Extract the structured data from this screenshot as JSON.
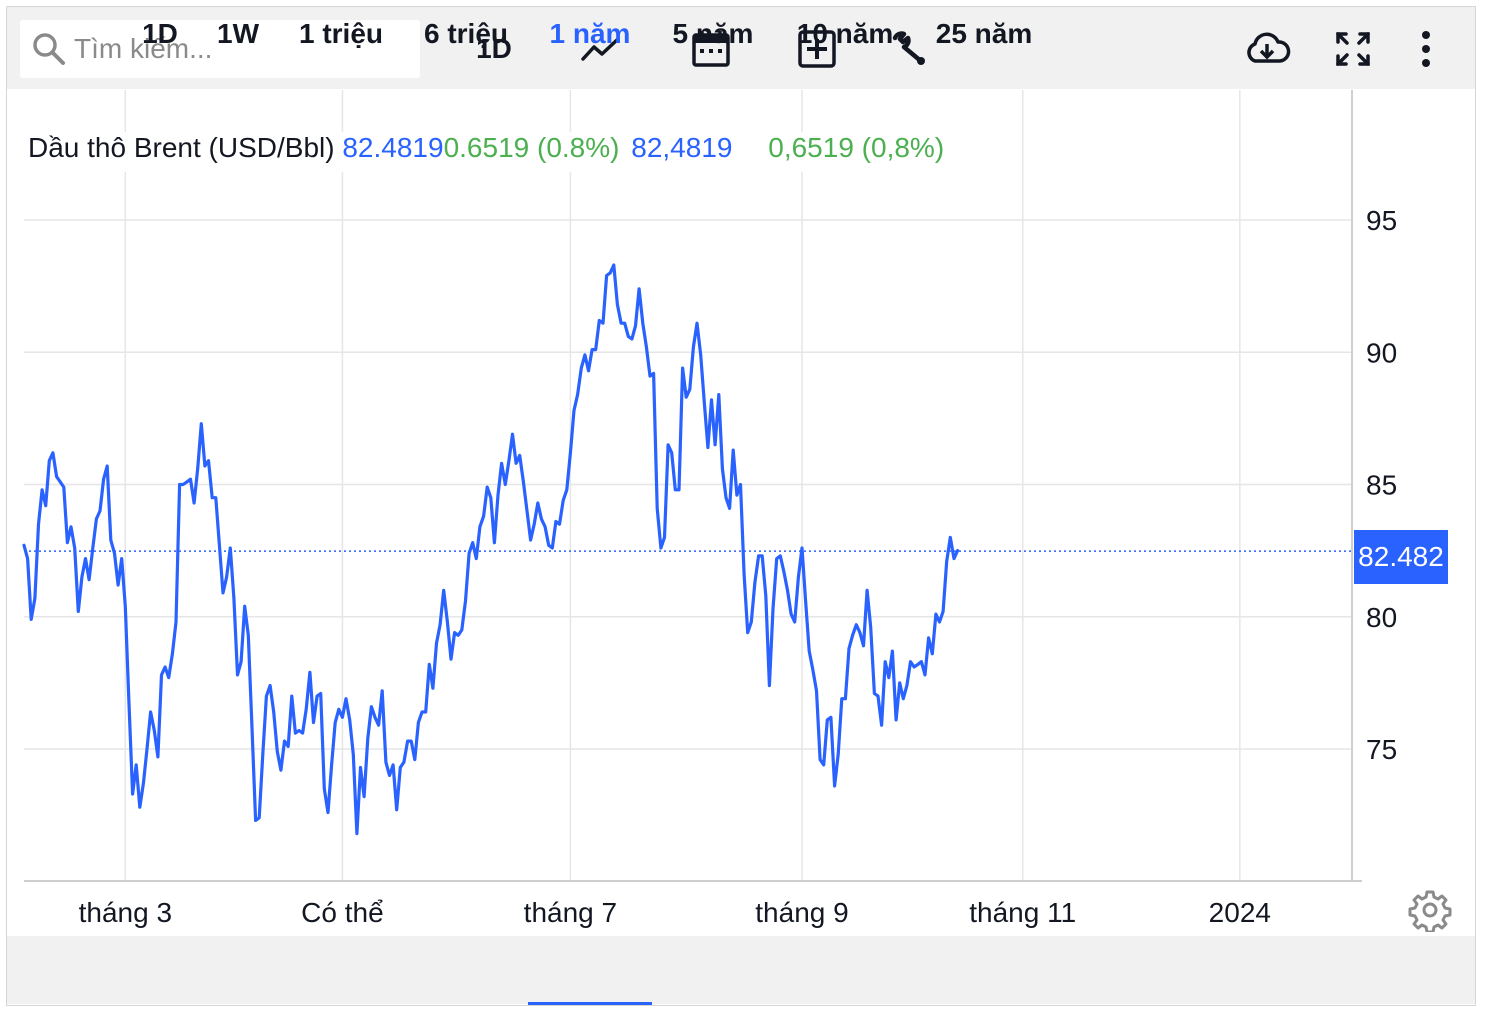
{
  "toolbar": {
    "search_placeholder": "Tìm kiếm...",
    "interval_label": "1D",
    "icons": [
      "search-icon",
      "line-chart-icon",
      "calendar-icon",
      "add-compare-icon",
      "wrench-icon",
      "cloud-download-icon",
      "fullscreen-icon",
      "more-vertical-icon"
    ]
  },
  "legend": {
    "name": "Dầu thô Brent (USD/Bbl)",
    "value": "82.4819",
    "change": "0.6519 (0.8%)",
    "value_alt": "82,4819",
    "change_alt": "0,6519 (0,8%)"
  },
  "price_badge": "82.482",
  "ranges": [
    "1D",
    "1W",
    "1 triệu",
    "6 triệu",
    "1 năm",
    "5 năm",
    "10 năm",
    "25 năm"
  ],
  "active_range": "1 năm",
  "colors": {
    "line": "#2962ff",
    "positive": "#4caf50",
    "grid": "#e6e6e6",
    "badge": "#2962ff"
  },
  "chart_data": {
    "type": "line",
    "title": "Dầu thô Brent (USD/Bbl)",
    "xlabel": "",
    "ylabel": "",
    "ylim": [
      70,
      97
    ],
    "xlim": [
      0,
      367
    ],
    "yticks": [
      75,
      80,
      85,
      90,
      95
    ],
    "xticks": [
      {
        "label": "tháng 3",
        "x": 28
      },
      {
        "label": "Có thể",
        "x": 88
      },
      {
        "label": "tháng 7",
        "x": 151
      },
      {
        "label": "tháng 9",
        "x": 215
      },
      {
        "label": "tháng 11",
        "x": 276
      },
      {
        "label": "2024",
        "x": 336
      }
    ],
    "last_value": 82.482,
    "grid": true,
    "series": [
      {
        "values": [
          82.7,
          82.2,
          79.9,
          80.7,
          83.5,
          84.8,
          84.2,
          85.9,
          86.2,
          85.3,
          85.1,
          84.9,
          82.8,
          83.4,
          82.6,
          80.2,
          81.5,
          82.2,
          81.4,
          82.6,
          83.7,
          84.0,
          85.2,
          85.7,
          82.9,
          82.4,
          81.2,
          82.2,
          80.4,
          76.8,
          73.3,
          74.4,
          72.8,
          73.7,
          75.0,
          76.4,
          75.7,
          74.7,
          77.8,
          78.1,
          77.7,
          78.6,
          79.8,
          85.0,
          85.0,
          85.1,
          85.2,
          84.3,
          85.6,
          87.3,
          85.7,
          85.9,
          84.5,
          84.5,
          82.7,
          80.9,
          81.5,
          82.6,
          80.7,
          77.8,
          78.3,
          80.4,
          79.3,
          75.8,
          72.3,
          72.4,
          74.8,
          77.0,
          77.4,
          76.4,
          74.9,
          74.2,
          75.3,
          75.1,
          77.0,
          75.6,
          75.7,
          75.6,
          76.5,
          77.9,
          76.0,
          77.0,
          77.1,
          73.5,
          72.6,
          74.4,
          76.0,
          76.5,
          76.2,
          76.9,
          76.1,
          74.8,
          71.8,
          74.3,
          73.2,
          75.4,
          76.6,
          76.2,
          75.9,
          77.2,
          74.5,
          74.0,
          74.4,
          72.7,
          74.3,
          74.5,
          75.3,
          75.3,
          74.6,
          76.0,
          76.4,
          76.4,
          78.2,
          77.3,
          79.0,
          79.7,
          81.0,
          79.8,
          78.4,
          79.4,
          79.3,
          79.5,
          80.6,
          82.4,
          82.8,
          82.2,
          83.4,
          83.8,
          84.9,
          84.5,
          82.8,
          84.6,
          85.8,
          85.0,
          85.9,
          86.9,
          85.8,
          86.1,
          85.1,
          84.0,
          82.9,
          83.5,
          84.3,
          83.7,
          83.4,
          82.7,
          82.6,
          83.6,
          83.5,
          84.4,
          84.8,
          86.2,
          87.8,
          88.4,
          89.4,
          89.9,
          89.3,
          90.1,
          90.1,
          91.2,
          91.1,
          92.9,
          93.0,
          93.3,
          91.8,
          91.1,
          91.1,
          90.6,
          90.5,
          91.0,
          92.4,
          91.1,
          90.2,
          89.1,
          89.2,
          84.1,
          82.6,
          83.0,
          86.5,
          86.2,
          84.8,
          84.8,
          89.4,
          88.3,
          88.6,
          90.2,
          91.1,
          89.9,
          88.1,
          86.4,
          88.2,
          86.5,
          88.4,
          85.6,
          84.5,
          84.1,
          86.3,
          84.6,
          85.0,
          81.6,
          79.4,
          79.8,
          81.3,
          82.3,
          82.3,
          80.8,
          77.4,
          80.3,
          82.2,
          82.3,
          81.7,
          81.0,
          80.1,
          79.8,
          81.5,
          82.6,
          80.6,
          78.7,
          78.0,
          77.2,
          74.6,
          74.4,
          76.1,
          76.2,
          73.6,
          74.8,
          76.9,
          76.9,
          78.8,
          79.3,
          79.7,
          79.4,
          78.9,
          81.0,
          79.6,
          77.1,
          77.0,
          75.9,
          78.3,
          77.7,
          78.7,
          76.1,
          77.5,
          76.9,
          77.4,
          78.3,
          78.1,
          78.2,
          78.3,
          77.8,
          79.2,
          78.6,
          80.1,
          79.8,
          80.2,
          82.1,
          83.0,
          82.2,
          82.5
        ]
      }
    ]
  }
}
